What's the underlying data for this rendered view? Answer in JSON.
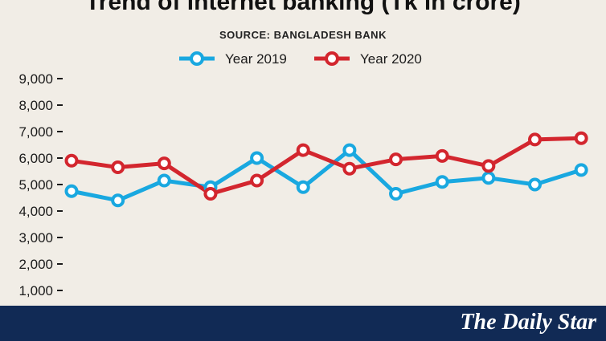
{
  "chart_data": {
    "type": "line",
    "title": "Trend of internet banking (Tk in crore)",
    "subtitle": "SOURCE: BANGLADESH BANK",
    "x": [
      "1",
      "2",
      "3",
      "4",
      "5",
      "6",
      "7",
      "8",
      "9",
      "10",
      "11",
      "12"
    ],
    "ylim": [
      0,
      9000
    ],
    "yticks": [
      1000,
      2000,
      3000,
      4000,
      5000,
      6000,
      7000,
      8000,
      9000
    ],
    "ytick_labels": [
      "1,000",
      "2,000",
      "3,000",
      "4,000",
      "5,000",
      "6,000",
      "7,000",
      "8,000",
      "9,000"
    ],
    "legend_position": "top-center",
    "series": [
      {
        "name": "Year 2019",
        "color": "#19a8e0",
        "values": [
          4750,
          4400,
          5150,
          4900,
          6000,
          4900,
          6300,
          4650,
          5100,
          5250,
          5000,
          5550
        ]
      },
      {
        "name": "Year 2020",
        "color": "#d3262e",
        "values": [
          5900,
          5650,
          5800,
          4650,
          5150,
          6300,
          5600,
          5950,
          6080,
          5700,
          6700,
          6750
        ]
      }
    ]
  },
  "footer": {
    "logo_text": "The Daily Star",
    "background": "#112a55"
  }
}
